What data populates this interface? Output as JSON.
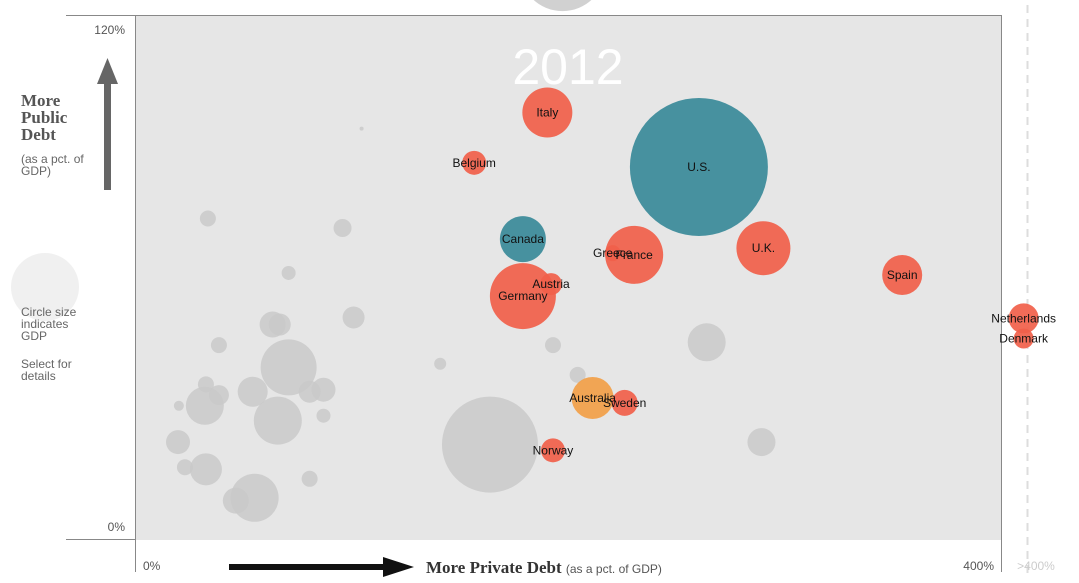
{
  "chart_data": {
    "type": "scatter",
    "year": "2012",
    "ylabel": "More Public Debt",
    "ylabel_sub": "(as a pct. of GDP)",
    "xlabel": "More Private Debt",
    "xlabel_sub": "(as a pct. of GDP)",
    "xlim": [
      0,
      400
    ],
    "ylim": [
      0,
      120
    ],
    "x_ticks": [
      "0%",
      "400%",
      ">400%"
    ],
    "y_ticks": [
      "120%",
      "0%"
    ],
    "size_note": "Circle size indicates GDP",
    "select_note": "Select for details",
    "colors": {
      "europe": "#f15f4a",
      "north_america": "#3a8a99",
      "asia_pacific": "#f2a048",
      "other": "#c9c9c9",
      "background": "#e6e6e6"
    },
    "highlighted": [
      {
        "label": "Italy",
        "x": 190.0,
        "y": 100.0,
        "size": 25,
        "group": "europe"
      },
      {
        "label": "Belgium",
        "x": 156.2,
        "y": 87.8,
        "size": 12,
        "group": "europe"
      },
      {
        "label": "U.S.",
        "x": 260.0,
        "y": 86.8,
        "size": 69,
        "group": "north_america"
      },
      {
        "label": "Canada",
        "x": 178.7,
        "y": 69.3,
        "size": 23,
        "group": "north_america"
      },
      {
        "label": "Greece",
        "x": 220.2,
        "y": 65.9,
        "size": 8,
        "group": "europe"
      },
      {
        "label": "France",
        "x": 230.1,
        "y": 65.5,
        "size": 29,
        "group": "europe"
      },
      {
        "label": "U.K.",
        "x": 289.8,
        "y": 67.1,
        "size": 27,
        "group": "europe"
      },
      {
        "label": "Spain",
        "x": 353.9,
        "y": 60.6,
        "size": 20,
        "group": "europe"
      },
      {
        "label": "Austria",
        "x": 191.7,
        "y": 58.4,
        "size": 11,
        "group": "europe"
      },
      {
        "label": "Germany",
        "x": 178.7,
        "y": 55.5,
        "size": 33,
        "group": "europe"
      },
      {
        "label": "Netherlands",
        "x": 410.0,
        "y": 50.1,
        "size": 15,
        "group": "europe"
      },
      {
        "label": "Denmark",
        "x": 410.0,
        "y": 45.2,
        "size": 10,
        "group": "europe"
      },
      {
        "label": "Australia",
        "x": 210.9,
        "y": 30.8,
        "size": 21,
        "group": "asia_pacific"
      },
      {
        "label": "Sweden",
        "x": 225.7,
        "y": 29.6,
        "size": 13,
        "group": "europe"
      },
      {
        "label": "Norway",
        "x": 192.6,
        "y": 18.1,
        "size": 12,
        "group": "europe"
      }
    ],
    "others": [
      {
        "x": 197.0,
        "y": 135.0,
        "size": 43
      },
      {
        "x": 104.2,
        "y": 96.1,
        "size": 2
      },
      {
        "x": 33.2,
        "y": 74.3,
        "size": 8
      },
      {
        "x": 95.4,
        "y": 72.0,
        "size": 9
      },
      {
        "x": 70.5,
        "y": 61.1,
        "size": 7
      },
      {
        "x": 100.5,
        "y": 50.3,
        "size": 11
      },
      {
        "x": 63.1,
        "y": 48.6,
        "size": 13
      },
      {
        "x": 66.4,
        "y": 48.6,
        "size": 11
      },
      {
        "x": 38.3,
        "y": 43.6,
        "size": 8
      },
      {
        "x": 192.6,
        "y": 43.6,
        "size": 8
      },
      {
        "x": 263.6,
        "y": 44.3,
        "size": 19
      },
      {
        "x": 70.5,
        "y": 38.2,
        "size": 28
      },
      {
        "x": 140.5,
        "y": 39.1,
        "size": 6
      },
      {
        "x": 204.0,
        "y": 36.4,
        "size": 8
      },
      {
        "x": 32.3,
        "y": 34.1,
        "size": 8
      },
      {
        "x": 38.3,
        "y": 31.5,
        "size": 10
      },
      {
        "x": 53.9,
        "y": 32.3,
        "size": 15
      },
      {
        "x": 80.2,
        "y": 32.3,
        "size": 11
      },
      {
        "x": 86.6,
        "y": 32.8,
        "size": 12
      },
      {
        "x": 19.8,
        "y": 28.9,
        "size": 5
      },
      {
        "x": 31.8,
        "y": 28.9,
        "size": 19
      },
      {
        "x": 65.5,
        "y": 25.3,
        "size": 24
      },
      {
        "x": 86.6,
        "y": 26.5,
        "size": 7
      },
      {
        "x": 163.5,
        "y": 19.5,
        "size": 48
      },
      {
        "x": 288.9,
        "y": 20.1,
        "size": 14
      },
      {
        "x": 19.4,
        "y": 20.1,
        "size": 12
      },
      {
        "x": 22.6,
        "y": 14.0,
        "size": 8
      },
      {
        "x": 32.3,
        "y": 13.5,
        "size": 16
      },
      {
        "x": 80.2,
        "y": 11.2,
        "size": 8
      },
      {
        "x": 54.8,
        "y": 6.6,
        "size": 24
      },
      {
        "x": 46.1,
        "y": 5.9,
        "size": 13
      }
    ]
  }
}
